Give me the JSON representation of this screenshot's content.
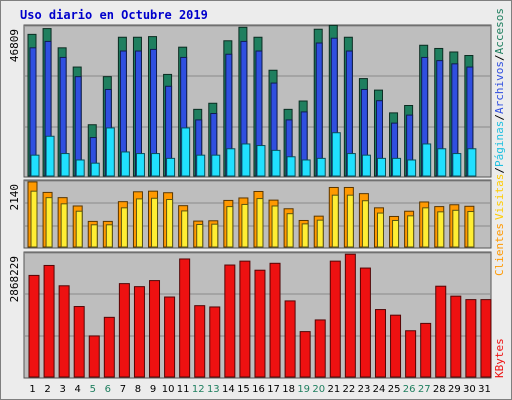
{
  "chart_data": {
    "type": "bar",
    "title": "Uso diario en Octubre 2019",
    "categories": [
      "1",
      "2",
      "3",
      "4",
      "5",
      "6",
      "7",
      "8",
      "9",
      "10",
      "11",
      "12",
      "13",
      "14",
      "15",
      "16",
      "17",
      "18",
      "19",
      "20",
      "21",
      "22",
      "23",
      "24",
      "25",
      "26",
      "27",
      "28",
      "29",
      "30",
      "31"
    ],
    "weekend_days": [
      "5",
      "6",
      "12",
      "13",
      "19",
      "20",
      "26",
      "27"
    ],
    "panels": [
      {
        "name": "hits",
        "ymax": 46809,
        "ymax_label": "46809",
        "series": [
          {
            "name": "Accesos",
            "color": "#1f7f5f",
            "values": [
              44200,
              46000,
              40000,
              34000,
              16000,
              31000,
              43300,
              43300,
              43500,
              31700,
              40200,
              20800,
              22700,
              42200,
              46400,
              43300,
              33000,
              20800,
              23400,
              45800,
              47000,
              43300,
              30400,
              26800,
              19700,
              22000,
              40800,
              39800,
              38700,
              37600,
              0
            ]
          },
          {
            "name": "Archivos",
            "color": "#2f4fe0",
            "values": [
              40000,
              42000,
              37000,
              31000,
              12000,
              27000,
              39000,
              39000,
              39500,
              28000,
              37000,
              17500,
              19500,
              38000,
              42000,
              39000,
              29000,
              17500,
              20000,
              41500,
              43000,
              39000,
              27000,
              23500,
              16500,
              19000,
              37000,
              36000,
              35000,
              34000,
              0
            ]
          },
          {
            "name": "Páginas",
            "color": "#20e0ff",
            "values": [
              6500,
              12400,
              7000,
              5000,
              4000,
              15000,
              7500,
              7000,
              7000,
              5500,
              15000,
              6500,
              6500,
              8500,
              10000,
              9500,
              8000,
              6000,
              5000,
              5500,
              13500,
              7000,
              6500,
              5500,
              5500,
              5000,
              10000,
              8500,
              7000,
              8500,
              0
            ]
          }
        ]
      },
      {
        "name": "visits",
        "ymax": 2140,
        "ymax_label": "2140",
        "series": [
          {
            "name": "Visitas",
            "color": "#ff9900",
            "values": [
              2110,
              1770,
              1600,
              1330,
              830,
              830,
              1470,
              1790,
              1810,
              1760,
              1340,
              840,
              850,
              1510,
              1590,
              1800,
              1520,
              1240,
              860,
              1000,
              1930,
              1930,
              1730,
              1270,
              990,
              1160,
              1460,
              1310,
              1370,
              1320,
              0
            ]
          },
          {
            "name": "Clientes",
            "color": "#ffee33",
            "values": [
              1810,
              1600,
              1400,
              1160,
              720,
              720,
              1270,
              1560,
              1580,
              1540,
              1170,
              730,
              740,
              1310,
              1380,
              1570,
              1330,
              1080,
              750,
              870,
              1680,
              1680,
              1500,
              1100,
              860,
              1010,
              1270,
              1140,
              1190,
              1150,
              0
            ]
          }
        ]
      },
      {
        "name": "kbytes",
        "ymax": 2868229,
        "ymax_label": "2868229",
        "series": [
          {
            "name": "KBytes",
            "color": "#ee1111",
            "values": [
              2350000,
              2580000,
              2110000,
              1630000,
              950000,
              1380000,
              2160000,
              2090000,
              2230000,
              1850000,
              2730000,
              1650000,
              1620000,
              2590000,
              2680000,
              2470000,
              2630000,
              1760000,
              1050000,
              1320000,
              2680000,
              2840000,
              2520000,
              1560000,
              1430000,
              1070000,
              1240000,
              2100000,
              1870000,
              1790000,
              1790000
            ]
          }
        ]
      }
    ],
    "right_labels": {
      "hits": [
        "Accesos",
        "/",
        "Archivos",
        "/",
        "Páginas",
        "/",
        "Visitas"
      ],
      "visits": [
        "Clientes"
      ],
      "kbytes": [
        "KBytes"
      ]
    }
  }
}
